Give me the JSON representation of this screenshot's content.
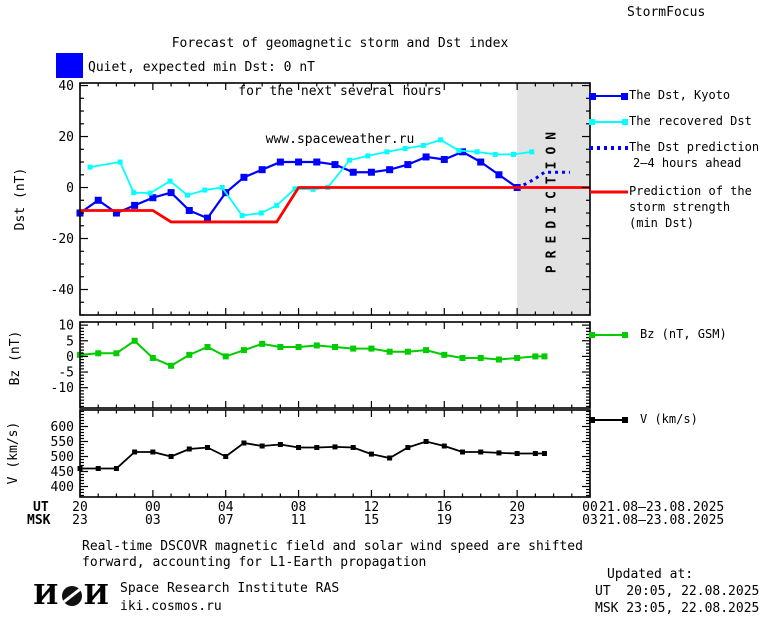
{
  "header": {
    "title_line1": "Forecast of geomagnetic storm and Dst index",
    "title_line2": "for the next several hours",
    "title_line3": "www.spaceweather.ru",
    "brand": "StormFocus"
  },
  "status": {
    "label": "Quiet, expected min Dst: 0 nT",
    "swatch_color": "#0000ff"
  },
  "legend": {
    "dst_kyoto": "The Dst, Kyoto",
    "recovered": "The recovered Dst",
    "prediction_line1": "The Dst prediction",
    "prediction_line2": "2–4 hours ahead",
    "storm_line1": "Prediction of the",
    "storm_line2": "storm strength",
    "storm_line3": "(min Dst)",
    "bz": "Bz (nT, GSM)",
    "v": "V (km/s)"
  },
  "prediction_band_label": "PREDICTION",
  "colors": {
    "dst_kyoto": "#0000ff",
    "recovered": "#00ffff",
    "prediction": "#0000ff",
    "storm_strength": "#ff0000",
    "bz": "#00cc00",
    "v": "#000000",
    "band": "#e2e2e2",
    "band_text": "#c6c6c6"
  },
  "x_axis": {
    "ut_label": "UT",
    "msk_label": "MSK",
    "ut_ticks": [
      "20",
      "00",
      "04",
      "08",
      "12",
      "16",
      "20",
      "00"
    ],
    "msk_ticks": [
      "23",
      "03",
      "07",
      "11",
      "15",
      "19",
      "23",
      "03"
    ],
    "ut_date": "21.08–23.08.2025",
    "msk_date": "21.08–23.08.2025"
  },
  "footer": {
    "note_line1": "Real-time DSCOVR magnetic field and solar wind speed are shifted",
    "note_line2": "forward, accounting for L1-Earth propagation",
    "logo_left": "И",
    "logo_right": "И",
    "institute": "Space Research Institute RAS",
    "site": "iki.cosmos.ru",
    "updated_label": "Updated at:",
    "updated_ut": "UT  20:05, 22.08.2025",
    "updated_msk": "MSK 23:05, 22.08.2025"
  },
  "chart_data": [
    {
      "type": "line",
      "name": "dst",
      "ylabel": "Dst (nT)",
      "ylim": [
        -50,
        41
      ],
      "yticks": [
        40,
        20,
        0,
        -20,
        -40
      ],
      "ytick_minor": 5,
      "xlim_hours_from_20ut": [
        0,
        28
      ],
      "xtick_major_hours": 4,
      "xtick_minor_hours": 1,
      "prediction_band": [
        24,
        28
      ],
      "series": [
        {
          "id": "dst-kyoto",
          "name": "The Dst, Kyoto",
          "color": "#0000ff",
          "marker": 7,
          "width": 2.2,
          "x": [
            0,
            1,
            2,
            3,
            4,
            5,
            6,
            7,
            8,
            9,
            10,
            11,
            12,
            13,
            14,
            15,
            16,
            17,
            18,
            19,
            20,
            21,
            22,
            23,
            24
          ],
          "y": [
            -10,
            -5,
            -10,
            -7,
            -4,
            -2,
            -9,
            -12,
            -2,
            4,
            7,
            10,
            10,
            10,
            9,
            6,
            6,
            7,
            9,
            12,
            11,
            14,
            10,
            5,
            0
          ]
        },
        {
          "id": "recovered-dst",
          "name": "The recovered Dst",
          "color": "#00ffff",
          "marker": 5,
          "width": 1.8,
          "x": [
            0.55,
            2.2,
            2.95,
            3.85,
            4.95,
            5.9,
            6.85,
            7.8,
            8.9,
            9.95,
            10.8,
            11.8,
            12.8,
            13.6,
            14.8,
            15.8,
            16.85,
            17.85,
            18.85,
            19.8,
            20.8,
            21.8,
            22.8,
            23.8,
            24.8
          ],
          "y": [
            8,
            10,
            -2,
            -2.2,
            2.5,
            -3,
            -1,
            0,
            -11,
            -10,
            -7,
            -0.5,
            -0.7,
            0,
            10.7,
            12.4,
            14,
            15.3,
            16.5,
            18.7,
            14.5,
            14,
            13,
            13,
            14
          ]
        },
        {
          "id": "dst-prediction",
          "name": "The Dst prediction 2-4 hours ahead",
          "color": "#0000ff",
          "marker": 0,
          "width": 3,
          "dash": "3 4",
          "x": [
            24,
            24.5,
            25,
            25.5,
            26.9
          ],
          "y": [
            0,
            1.5,
            3.5,
            6,
            6
          ]
        },
        {
          "id": "storm-strength",
          "name": "Prediction of the storm strength (min Dst)",
          "color": "#ff0000",
          "marker": 0,
          "width": 2.8,
          "x": [
            0,
            4,
            5,
            10.8,
            12,
            28
          ],
          "y": [
            -9,
            -9,
            -13.5,
            -13.5,
            0,
            0
          ]
        }
      ]
    },
    {
      "type": "line",
      "name": "bz",
      "ylabel": "Bz (nT)",
      "ylim": [
        -16.5,
        11
      ],
      "yticks": [
        10,
        5,
        0,
        -5,
        -10
      ],
      "ytick_minor": 1,
      "series": [
        {
          "id": "bz",
          "name": "Bz (nT, GSM)",
          "color": "#00cc00",
          "marker": 6,
          "width": 2,
          "x": [
            0,
            1,
            2,
            3,
            4,
            5,
            6,
            7,
            8,
            9,
            10,
            11,
            12,
            13,
            14,
            15,
            16,
            17,
            18,
            19,
            20,
            21,
            22,
            23,
            24,
            25,
            25.5
          ],
          "y": [
            0.5,
            1,
            1,
            5,
            -0.5,
            -3,
            0.5,
            3,
            0,
            2,
            4,
            3,
            3,
            3.5,
            3,
            2.5,
            2.5,
            1.5,
            1.5,
            2,
            0.5,
            -0.5,
            -0.5,
            -1,
            -0.5,
            0,
            0
          ]
        }
      ]
    },
    {
      "type": "line",
      "name": "v",
      "ylabel": "V (km/s)",
      "ylim": [
        365,
        655
      ],
      "yticks": [
        600,
        550,
        500,
        450,
        400
      ],
      "ytick_minor": 10,
      "series": [
        {
          "id": "v",
          "name": "V (km/s)",
          "color": "#000000",
          "marker": 5,
          "width": 1.8,
          "x": [
            0,
            1,
            2,
            3,
            4,
            5,
            6,
            7,
            8,
            9,
            10,
            11,
            12,
            13,
            14,
            15,
            16,
            17,
            18,
            19,
            20,
            21,
            22,
            23,
            24,
            25,
            25.5
          ],
          "y": [
            460,
            460,
            460,
            515,
            515,
            500,
            525,
            530,
            500,
            545,
            535,
            540,
            530,
            530,
            532,
            530,
            508,
            495,
            530,
            550,
            535,
            515,
            515,
            512,
            510,
            510,
            510
          ]
        }
      ]
    }
  ]
}
